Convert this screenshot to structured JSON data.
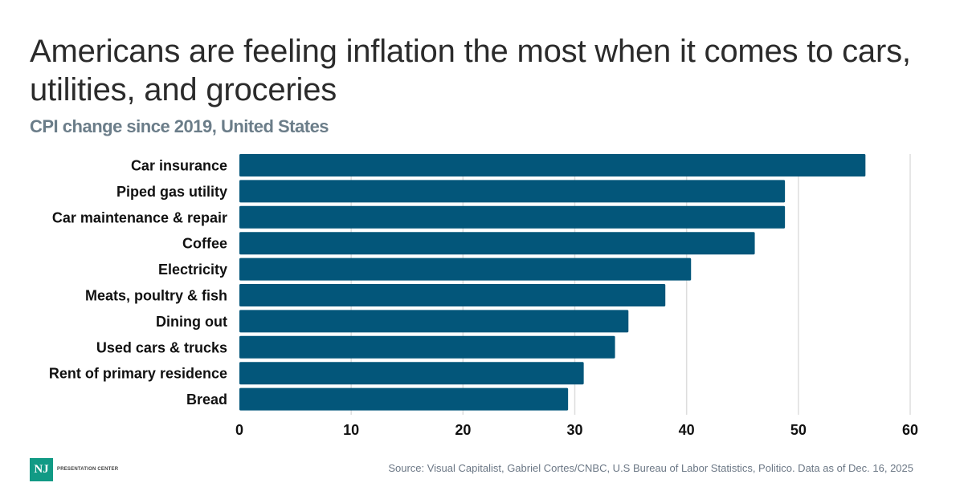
{
  "header": {
    "title": "Americans are feeling inflation the most when it comes to cars, utilities, and groceries",
    "subtitle": "CPI change since 2019, United States"
  },
  "footer": {
    "logo_mark": "NJ",
    "logo_text": "PRESENTATION CENTER",
    "source": "Source: Visual Capitalist, Gabriel Cortes/CNBC, U.S Bureau of Labor Statistics, Politico. Data as of Dec. 16, 2025"
  },
  "colors": {
    "bar": "#03567a",
    "grid": "#dddddd",
    "logo": "#119a85"
  },
  "chart_data": {
    "type": "bar",
    "orientation": "horizontal",
    "title": "Americans are feeling inflation the most when it comes to cars, utilities, and groceries",
    "subtitle": "CPI change since 2019, United States",
    "xlabel": "",
    "ylabel": "",
    "categories": [
      "Car insurance",
      "Piped gas utility",
      "Car maintenance & repair",
      "Coffee",
      "Electricity",
      "Meats, poultry & fish",
      "Dining out",
      "Used cars & trucks",
      "Rent of primary residence",
      "Bread"
    ],
    "values": [
      56.0,
      48.8,
      48.8,
      46.1,
      40.4,
      38.1,
      34.8,
      33.6,
      30.8,
      29.4
    ],
    "xlim": [
      0,
      60
    ],
    "xticks": [
      0,
      10,
      20,
      30,
      40,
      50,
      60
    ],
    "grid": true,
    "legend": "none"
  }
}
